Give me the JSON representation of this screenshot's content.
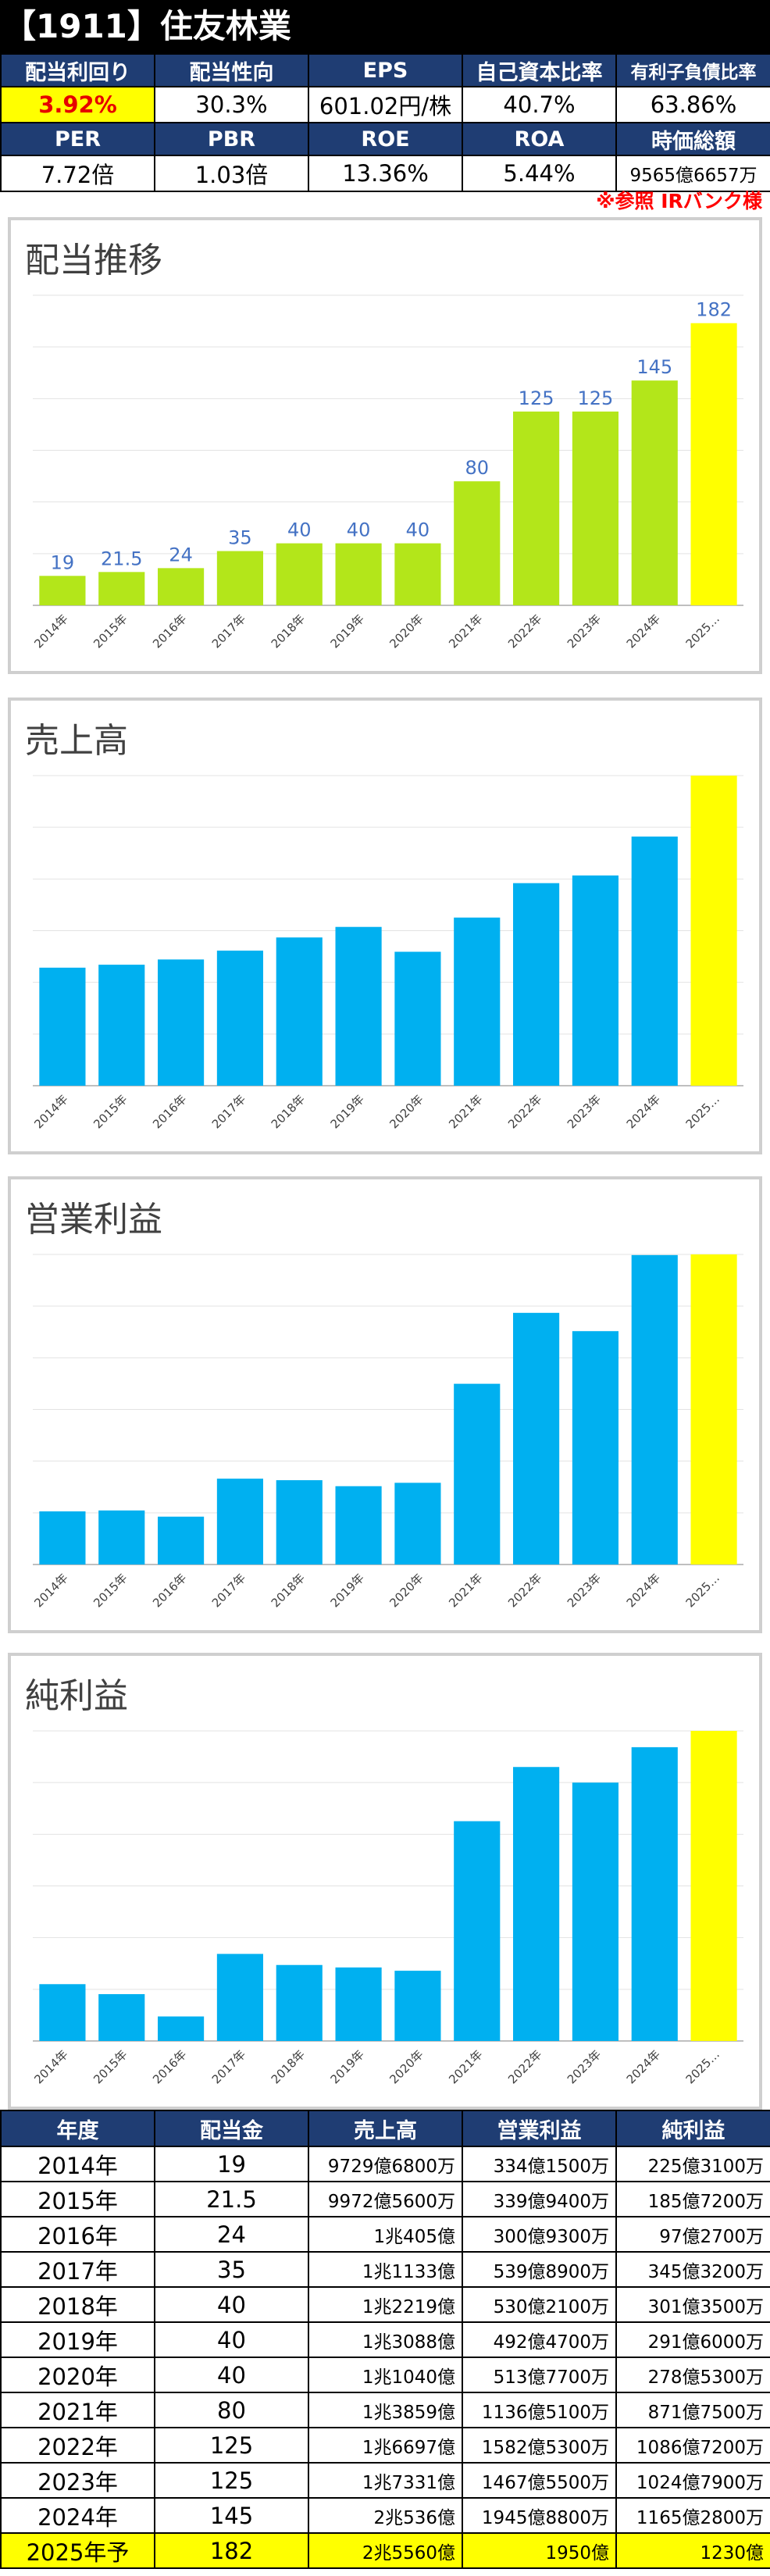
{
  "header": {
    "title": "【1911】住友林業"
  },
  "kpi": {
    "row1_labels": [
      "配当利回り",
      "配当性向",
      "EPS",
      "自己資本比率",
      "有利子負債比率"
    ],
    "row1_values": [
      "3.92%",
      "30.3%",
      "601.02円/株",
      "40.7%",
      "63.86%"
    ],
    "row2_labels": [
      "PER",
      "PBR",
      "ROE",
      "ROA",
      "時価総額"
    ],
    "row2_values": [
      "7.72倍",
      "1.03倍",
      "13.36%",
      "5.44%",
      "9565億6657万"
    ]
  },
  "reference_note": "※参照 IRバンク様",
  "colors": {
    "green": "#b3e61a",
    "blue": "#00b0f0",
    "yellow": "#ffff00",
    "header_navy": "#1f3d73",
    "label_blue": "#4472c4"
  },
  "chart_data": [
    {
      "type": "bar",
      "title": "配当推移",
      "categories": [
        "2014年",
        "2015年",
        "2016年",
        "2017年",
        "2018年",
        "2019年",
        "2020年",
        "2021年",
        "2022年",
        "2023年",
        "2024年",
        "2025…"
      ],
      "values": [
        19,
        21.5,
        24,
        35,
        40,
        40,
        40,
        80,
        125,
        125,
        145,
        182
      ],
      "data_labels": [
        "19",
        "21.5",
        "24",
        "35",
        "40",
        "40",
        "40",
        "80",
        "125",
        "125",
        "145",
        "182"
      ],
      "ylim": [
        0,
        200
      ],
      "grid": true,
      "bar_colors": [
        "green",
        "green",
        "green",
        "green",
        "green",
        "green",
        "green",
        "green",
        "green",
        "green",
        "green",
        "yellow"
      ]
    },
    {
      "type": "bar",
      "title": "売上高",
      "categories": [
        "2014年",
        "2015年",
        "2016年",
        "2017年",
        "2018年",
        "2019年",
        "2020年",
        "2021年",
        "2022年",
        "2023年",
        "2024年",
        "2025…"
      ],
      "values": [
        9729.68,
        9972.56,
        10405,
        11133,
        12219,
        13088,
        11040,
        13859,
        16697,
        17331,
        20536,
        25560
      ],
      "unit": "億円",
      "ylim": [
        0,
        25560
      ],
      "grid": true,
      "bar_colors": [
        "blue",
        "blue",
        "blue",
        "blue",
        "blue",
        "blue",
        "blue",
        "blue",
        "blue",
        "blue",
        "blue",
        "yellow"
      ]
    },
    {
      "type": "bar",
      "title": "営業利益",
      "categories": [
        "2014年",
        "2015年",
        "2016年",
        "2017年",
        "2018年",
        "2019年",
        "2020年",
        "2021年",
        "2022年",
        "2023年",
        "2024年",
        "2025…"
      ],
      "values": [
        334.15,
        339.94,
        300.93,
        539.89,
        530.21,
        492.47,
        513.77,
        1136.51,
        1582.53,
        1467.55,
        1945.88,
        1950
      ],
      "unit": "億円",
      "ylim": [
        0,
        1950
      ],
      "grid": true,
      "bar_colors": [
        "blue",
        "blue",
        "blue",
        "blue",
        "blue",
        "blue",
        "blue",
        "blue",
        "blue",
        "blue",
        "blue",
        "yellow"
      ]
    },
    {
      "type": "bar",
      "title": "純利益",
      "categories": [
        "2014年",
        "2015年",
        "2016年",
        "2017年",
        "2018年",
        "2019年",
        "2020年",
        "2021年",
        "2022年",
        "2023年",
        "2024年",
        "2025…"
      ],
      "values": [
        225.31,
        185.72,
        97.27,
        345.32,
        301.35,
        291.6,
        278.53,
        871.75,
        1086.72,
        1024.79,
        1165.28,
        1230
      ],
      "unit": "億円",
      "ylim": [
        0,
        1230
      ],
      "grid": true,
      "bar_colors": [
        "blue",
        "blue",
        "blue",
        "blue",
        "blue",
        "blue",
        "blue",
        "blue",
        "blue",
        "blue",
        "blue",
        "yellow"
      ]
    }
  ],
  "table": {
    "headers": [
      "年度",
      "配当金",
      "売上高",
      "営業利益",
      "純利益"
    ],
    "rows": [
      [
        "2014年",
        "19",
        "9729億6800万",
        "334億1500万",
        "225億3100万"
      ],
      [
        "2015年",
        "21.5",
        "9972億5600万",
        "339億9400万",
        "185億7200万"
      ],
      [
        "2016年",
        "24",
        "1兆405億",
        "300億9300万",
        "97億2700万"
      ],
      [
        "2017年",
        "35",
        "1兆1133億",
        "539億8900万",
        "345億3200万"
      ],
      [
        "2018年",
        "40",
        "1兆2219億",
        "530億2100万",
        "301億3500万"
      ],
      [
        "2019年",
        "40",
        "1兆3088億",
        "492億4700万",
        "291億6000万"
      ],
      [
        "2020年",
        "40",
        "1兆1040億",
        "513億7700万",
        "278億5300万"
      ],
      [
        "2021年",
        "80",
        "1兆3859億",
        "1136億5100万",
        "871億7500万"
      ],
      [
        "2022年",
        "125",
        "1兆6697億",
        "1582億5300万",
        "1086億7200万"
      ],
      [
        "2023年",
        "125",
        "1兆7331億",
        "1467億5500万",
        "1024億7900万"
      ],
      [
        "2024年",
        "145",
        "2兆536億",
        "1945億8800万",
        "1165億2800万"
      ],
      [
        "2025年予",
        "182",
        "2兆5560億",
        "1950億",
        "1230億"
      ]
    ]
  }
}
